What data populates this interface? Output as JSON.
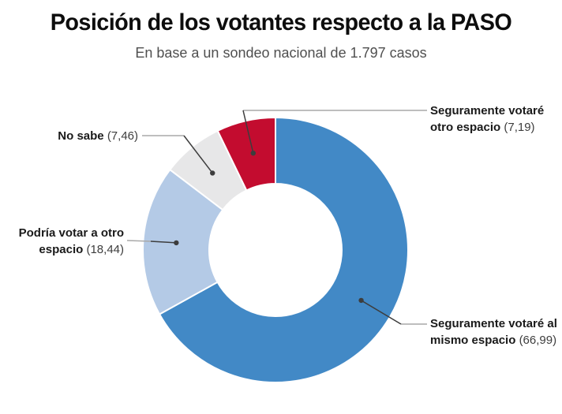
{
  "chart_data": {
    "type": "pie",
    "subtype": "donut",
    "title": "Posición de los votantes respecto a la PASO",
    "subtitle": "En base a un sondeo nacional de 1.797 casos",
    "unit": "percent",
    "start_angle_deg": 0,
    "direction": "clockwise",
    "inner_radius_ratio": 0.5,
    "legend_position": "callout-labels",
    "separator_color": "#ffffff",
    "leader_line_color_near_label": "#a9a9a9",
    "leader_line_color_near_dot": "#3d3d3d",
    "segments": [
      {
        "label": "Seguramente votaré al mismo espacio",
        "value": 66.99,
        "value_display": "(66,99)",
        "color": "#4289c6"
      },
      {
        "label": "Podría votar a otro espacio",
        "value": 18.44,
        "value_display": "(18,44)",
        "color": "#b4cae6"
      },
      {
        "label": "No sabe",
        "value": 7.46,
        "value_display": "(7,46)",
        "color": "#e7e7e8"
      },
      {
        "label": "Seguramente votaré otro espacio",
        "value": 7.19,
        "value_display": "(7,19)",
        "color": "#c30c2f"
      }
    ]
  }
}
